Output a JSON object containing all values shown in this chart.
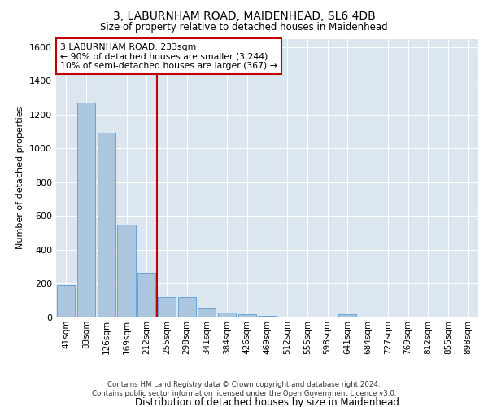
{
  "title": "3, LABURNHAM ROAD, MAIDENHEAD, SL6 4DB",
  "subtitle": "Size of property relative to detached houses in Maidenhead",
  "xlabel": "Distribution of detached houses by size in Maidenhead",
  "ylabel": "Number of detached properties",
  "categories": [
    "41sqm",
    "83sqm",
    "126sqm",
    "169sqm",
    "212sqm",
    "255sqm",
    "298sqm",
    "341sqm",
    "384sqm",
    "426sqm",
    "469sqm",
    "512sqm",
    "555sqm",
    "598sqm",
    "641sqm",
    "684sqm",
    "727sqm",
    "769sqm",
    "812sqm",
    "855sqm",
    "898sqm"
  ],
  "values": [
    195,
    1270,
    1095,
    550,
    265,
    120,
    120,
    60,
    30,
    20,
    10,
    0,
    0,
    0,
    18,
    0,
    0,
    0,
    0,
    0,
    0
  ],
  "bar_color": "#adc6e0",
  "bar_edge_color": "#5b9bd5",
  "vline_x": 4.5,
  "vline_color": "#c00000",
  "annotation_text": "3 LABURNHAM ROAD: 233sqm\n← 90% of detached houses are smaller (3,244)\n10% of semi-detached houses are larger (367) →",
  "annotation_box_color": "#ffffff",
  "annotation_edge_color": "#c00000",
  "ylim": [
    0,
    1650
  ],
  "yticks": [
    0,
    200,
    400,
    600,
    800,
    1000,
    1200,
    1400,
    1600
  ],
  "bg_color": "#dce6f1",
  "footer1": "Contains HM Land Registry data © Crown copyright and database right 2024.",
  "footer2": "Contains public sector information licensed under the Open Government Licence v3.0."
}
